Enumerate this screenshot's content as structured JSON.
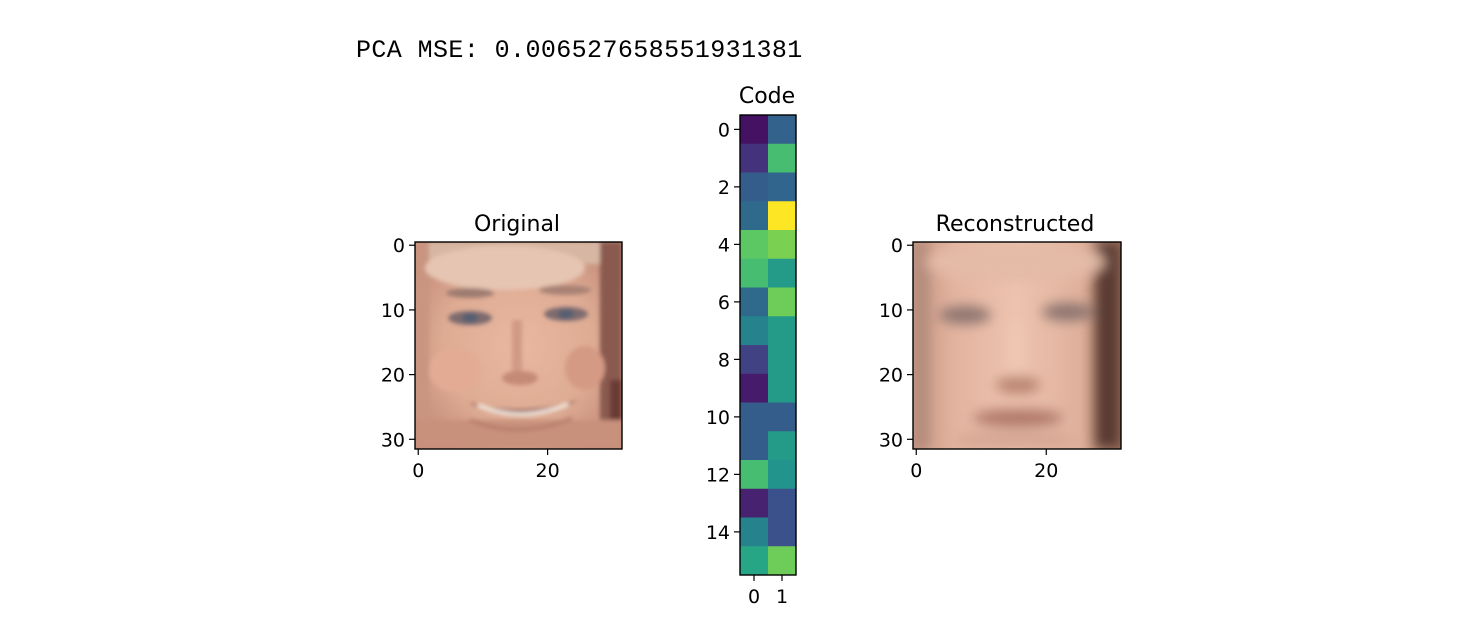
{
  "output": {
    "mse_label": "PCA MSE:",
    "mse_value": "0.006527658551931381"
  },
  "chart_data": [
    {
      "type": "heatmap",
      "title": "Original",
      "image": "face-photo",
      "x_ticks": [
        0,
        20
      ],
      "y_ticks": [
        0,
        10,
        20,
        30
      ],
      "xlim": [
        -0.5,
        31.5
      ],
      "ylim": [
        31.5,
        -0.5
      ]
    },
    {
      "type": "heatmap",
      "title": "Code",
      "colormap": "viridis",
      "shape": [
        16,
        2
      ],
      "values": [
        [
          0.05,
          0.32
        ],
        [
          0.15,
          0.7
        ],
        [
          0.3,
          0.33
        ],
        [
          0.35,
          1.0
        ],
        [
          0.75,
          0.8
        ],
        [
          0.7,
          0.55
        ],
        [
          0.35,
          0.78
        ],
        [
          0.45,
          0.55
        ],
        [
          0.2,
          0.55
        ],
        [
          0.08,
          0.55
        ],
        [
          0.3,
          0.3
        ],
        [
          0.3,
          0.55
        ],
        [
          0.7,
          0.52
        ],
        [
          0.1,
          0.25
        ],
        [
          0.45,
          0.25
        ],
        [
          0.6,
          0.78
        ]
      ],
      "x_ticks": [
        0,
        1
      ],
      "y_ticks": [
        0,
        2,
        4,
        6,
        8,
        10,
        12,
        14
      ],
      "xlim": [
        -0.5,
        1.5
      ],
      "ylim": [
        15.5,
        -0.5
      ]
    },
    {
      "type": "heatmap",
      "title": "Reconstructed",
      "image": "face-blurred",
      "x_ticks": [
        0,
        20
      ],
      "y_ticks": [
        0,
        10,
        20,
        30
      ],
      "xlim": [
        -0.5,
        31.5
      ],
      "ylim": [
        31.5,
        -0.5
      ]
    }
  ]
}
